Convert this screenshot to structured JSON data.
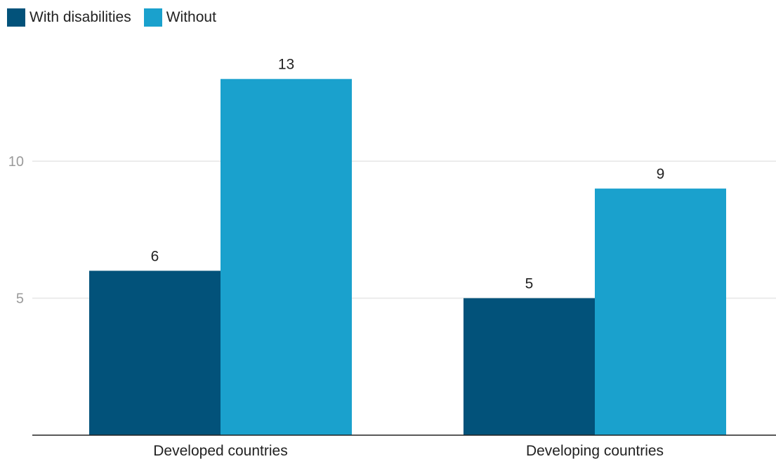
{
  "chart_data": {
    "type": "bar",
    "title": "",
    "xlabel": "",
    "ylabel": "",
    "categories": [
      "Developed countries",
      "Developing countries"
    ],
    "series": [
      {
        "name": "With disabilities",
        "values": [
          6,
          5
        ],
        "color": "#02527a"
      },
      {
        "name": "Without",
        "values": [
          13,
          9
        ],
        "color": "#1aa1cd"
      }
    ],
    "ylim": [
      0,
      14.5
    ],
    "yticks": [
      5,
      10
    ],
    "ytick_labels": [
      "5",
      "10"
    ],
    "grid": true,
    "legend_position": "top-left",
    "data_labels": true
  }
}
